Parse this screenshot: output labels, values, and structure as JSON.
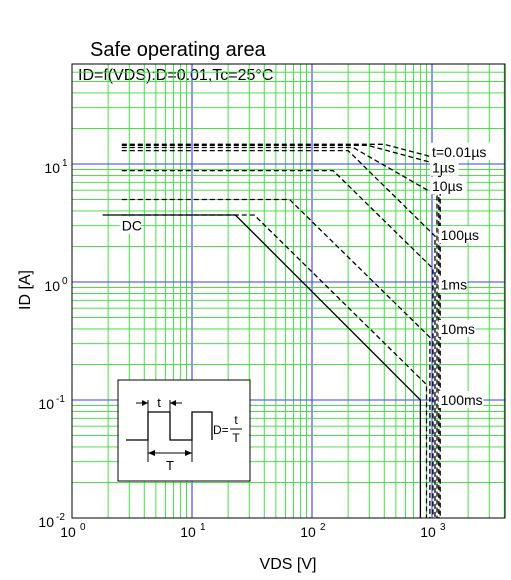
{
  "chart_data": {
    "type": "line",
    "title": "Safe operating area",
    "subtitle": "ID=f(VDS):D=0.01,Tc=25°C",
    "xlabel": "VDS [V]",
    "ylabel": "ID [A]",
    "x_scale": "log",
    "y_scale": "log",
    "xlim": [
      1,
      5000
    ],
    "ylim": [
      0.01,
      60
    ],
    "grid": true,
    "x_ticks": [
      {
        "value": 1,
        "base": "10",
        "exp": "0"
      },
      {
        "value": 10,
        "base": "10",
        "exp": "1"
      },
      {
        "value": 100,
        "base": "10",
        "exp": "2"
      },
      {
        "value": 1000,
        "base": "10",
        "exp": "3"
      }
    ],
    "y_ticks": [
      {
        "value": 0.01,
        "base": "10",
        "exp": "-2"
      },
      {
        "value": 0.1,
        "base": "10",
        "exp": "-1"
      },
      {
        "value": 1,
        "base": "10",
        "exp": "0"
      },
      {
        "value": 10,
        "base": "10",
        "exp": "1"
      }
    ],
    "series": [
      {
        "name": "DC",
        "style": "solid",
        "label_at": [
          2.6,
          3.0
        ],
        "points": [
          [
            1.8,
            3.7
          ],
          [
            23,
            3.7
          ],
          [
            800,
            0.1
          ],
          [
            800,
            0.01
          ]
        ]
      },
      {
        "name": "100ms",
        "style": "dashed",
        "label_at": [
          1180,
          0.1
        ],
        "points": [
          [
            2.6,
            3.7
          ],
          [
            33,
            3.7
          ],
          [
            900,
            0.135
          ],
          [
            900,
            0.01
          ]
        ]
      },
      {
        "name": "10ms",
        "style": "dashed",
        "label_at": [
          1180,
          0.4
        ],
        "points": [
          [
            2.6,
            5.0
          ],
          [
            65,
            5.0
          ],
          [
            960,
            0.34
          ],
          [
            960,
            0.01
          ]
        ]
      },
      {
        "name": "1ms",
        "style": "dashed",
        "label_at": [
          1180,
          0.95
        ],
        "points": [
          [
            2.6,
            8.8
          ],
          [
            150,
            8.8
          ],
          [
            1020,
            1.3
          ],
          [
            1020,
            0.01
          ]
        ]
      },
      {
        "name": "100µs",
        "style": "dashed",
        "label_at": [
          1180,
          2.5
        ],
        "points": [
          [
            2.6,
            13.0
          ],
          [
            200,
            13.0
          ],
          [
            1060,
            2.45
          ],
          [
            1060,
            0.01
          ]
        ]
      },
      {
        "name": "10µs",
        "style": "dashed",
        "label_at": [
          1000,
          6.5
        ],
        "points": [
          [
            2.6,
            13.8
          ],
          [
            220,
            13.8
          ],
          [
            1100,
            5.4
          ],
          [
            1100,
            0.01
          ]
        ]
      },
      {
        "name": "1µs",
        "style": "dashed",
        "label_at": [
          1000,
          9.3
        ],
        "points": [
          [
            2.6,
            14.4
          ],
          [
            290,
            14.4
          ],
          [
            1140,
            9.9
          ],
          [
            1140,
            0.01
          ]
        ]
      },
      {
        "name": "t=0.01µs",
        "style": "dashed",
        "label_at": [
          1000,
          12.7
        ],
        "points": [
          [
            2.6,
            14.7
          ],
          [
            400,
            14.7
          ],
          [
            1170,
            11.0
          ],
          [
            1170,
            0.01
          ]
        ]
      }
    ],
    "inset": {
      "pulse_width_label": "t",
      "period_label": "T",
      "formula_prefix": "D=",
      "formula_num": "t",
      "formula_den": "T"
    }
  }
}
